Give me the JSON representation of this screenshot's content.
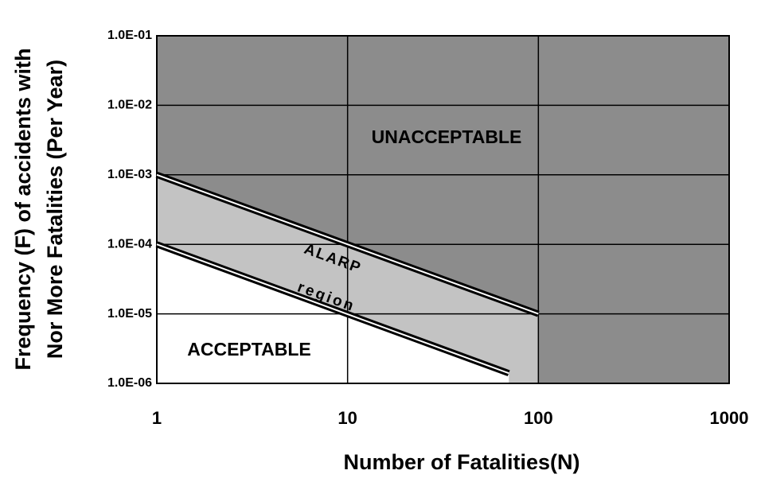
{
  "chart_data": {
    "type": "line",
    "xlabel": "Number of Fatalities(N)",
    "ylabel": [
      "Frequency (F) of accidents with",
      "Nor More Fatalities (Per Year)"
    ],
    "xlog": true,
    "ylog": true,
    "grid": true,
    "xlim": [
      1,
      1000
    ],
    "ylim": [
      1e-06,
      0.1
    ],
    "xticks": [
      1,
      10,
      100,
      1000
    ],
    "yticks": [
      {
        "value": 1e-06,
        "label": "1.0E-06"
      },
      {
        "value": 1e-05,
        "label": "1.0E-05"
      },
      {
        "value": 0.0001,
        "label": "1.0E-04"
      },
      {
        "value": 0.001,
        "label": "1.0E-03"
      },
      {
        "value": 0.01,
        "label": "1.0E-02"
      },
      {
        "value": 0.1,
        "label": "1.0E-01"
      }
    ],
    "series": [
      {
        "color": "#000000",
        "x": [
          1,
          100
        ],
        "values": [
          0.001,
          1e-05
        ]
      },
      {
        "color": "#000000",
        "x": [
          1,
          70
        ],
        "values": [
          0.0001,
          1.4e-06
        ]
      }
    ],
    "regions": {
      "unacceptable": "#8c8c8c",
      "alarp": "#c3c3c3",
      "acceptable": "#ffffff"
    },
    "annotations": {
      "unacceptable": "UNACCEPTABLE",
      "acceptable": "ACCEPTABLE",
      "alarp": "ALARP",
      "region": "region"
    }
  }
}
